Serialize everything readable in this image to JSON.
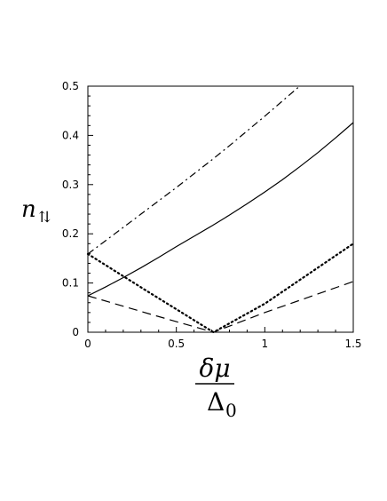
{
  "chart_data": {
    "type": "line",
    "title": "",
    "xlim": [
      0,
      1.5
    ],
    "ylim": [
      0,
      0.5
    ],
    "x_ticks": [
      {
        "value": 0,
        "label": "0"
      },
      {
        "value": 0.5,
        "label": "0.5"
      },
      {
        "value": 1,
        "label": "1"
      },
      {
        "value": 1.5,
        "label": "1.5"
      }
    ],
    "y_ticks": [
      {
        "value": 0,
        "label": "0"
      },
      {
        "value": 0.1,
        "label": "0.1"
      },
      {
        "value": 0.2,
        "label": "0.2"
      },
      {
        "value": 0.3,
        "label": "0.3"
      },
      {
        "value": 0.4,
        "label": "0.4"
      },
      {
        "value": 0.5,
        "label": "0.5"
      }
    ],
    "xlabel": {
      "numerator": "δμ",
      "denominator_symbol": "Δ",
      "denominator_subscript": "0"
    },
    "ylabel": {
      "symbol": "n",
      "subscript": "⇅"
    },
    "grid": false,
    "legend": "none",
    "series": [
      {
        "style": "solid",
        "x": [
          0,
          0.1,
          0.2,
          0.3,
          0.4,
          0.5,
          0.6,
          0.7,
          0.8,
          0.9,
          1.0,
          1.1,
          1.2,
          1.3,
          1.4,
          1.5
        ],
        "y": [
          0.074,
          0.092,
          0.111,
          0.131,
          0.152,
          0.174,
          0.195,
          0.216,
          0.238,
          0.261,
          0.285,
          0.31,
          0.337,
          0.365,
          0.395,
          0.426
        ]
      },
      {
        "style": "dashdot",
        "x": [
          0,
          0.1,
          0.2,
          0.3,
          0.4,
          0.5,
          0.6,
          0.7,
          0.8,
          0.9,
          1.0,
          1.1,
          1.2
        ],
        "y": [
          0.159,
          0.186,
          0.213,
          0.24,
          0.267,
          0.294,
          0.322,
          0.35,
          0.379,
          0.409,
          0.439,
          0.47,
          0.501
        ]
      },
      {
        "style": "dotted",
        "x": [
          0,
          0.35,
          0.71,
          1.0,
          1.5
        ],
        "y": [
          0.159,
          0.08,
          0.0,
          0.058,
          0.18
        ]
      },
      {
        "style": "dashed",
        "x": [
          0,
          0.35,
          0.71,
          1.0,
          1.5
        ],
        "y": [
          0.074,
          0.037,
          0.0,
          0.04,
          0.103
        ]
      }
    ]
  }
}
